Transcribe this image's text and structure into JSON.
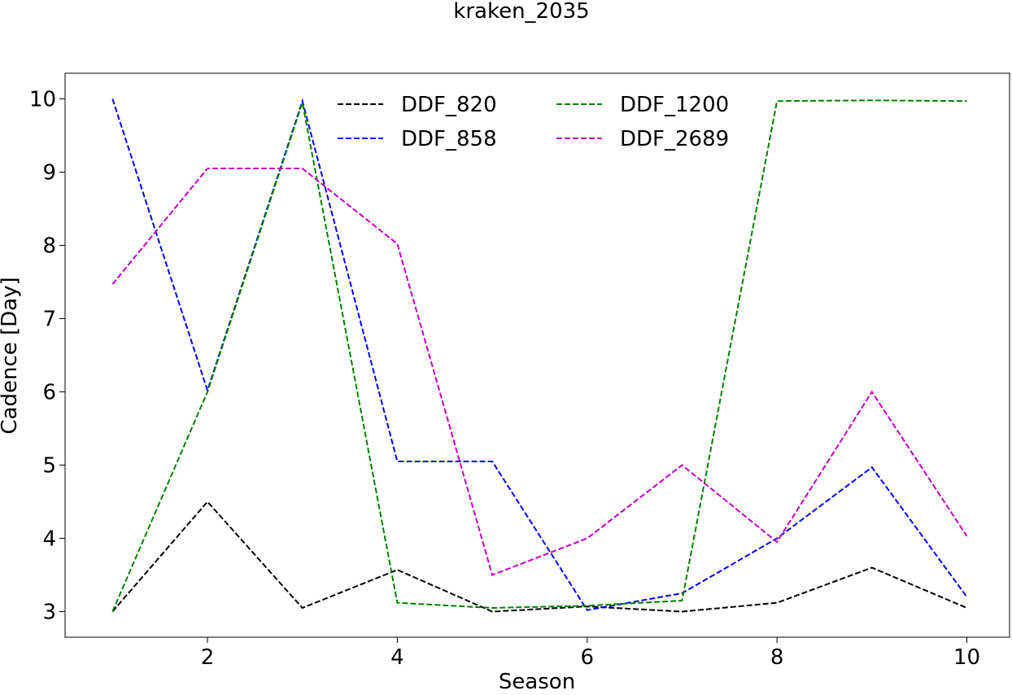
{
  "chart_data": {
    "type": "line",
    "title": "kraken_2035",
    "xlabel": "Season",
    "ylabel": "Cadence [Day]",
    "x": [
      1,
      2,
      3,
      4,
      5,
      6,
      7,
      8,
      9,
      10
    ],
    "xlim": [
      0.5,
      10.45
    ],
    "ylim": [
      2.65,
      10.35
    ],
    "xticks": [
      2,
      4,
      6,
      8,
      10
    ],
    "yticks": [
      3,
      4,
      5,
      6,
      7,
      8,
      9,
      10
    ],
    "grid": false,
    "legend_position": "top-center",
    "legend_columns": 2,
    "line_style": "dashed",
    "series": [
      {
        "name": "DDF_820",
        "color": "#000000",
        "values": [
          3.0,
          4.5,
          3.05,
          3.57,
          3.0,
          3.07,
          3.0,
          3.12,
          3.6,
          3.05
        ]
      },
      {
        "name": "DDF_858",
        "color": "#0000ff",
        "values": [
          10.0,
          6.02,
          9.97,
          5.05,
          5.05,
          3.02,
          3.25,
          4.0,
          4.97,
          3.2
        ]
      },
      {
        "name": "DDF_1200",
        "color": "#008000",
        "values": [
          3.0,
          6.0,
          9.95,
          3.12,
          3.05,
          3.08,
          3.15,
          9.97,
          9.98,
          9.97
        ]
      },
      {
        "name": "DDF_2689",
        "color": "#c000c0",
        "values": [
          7.47,
          9.05,
          9.05,
          8.02,
          3.5,
          4.0,
          5.0,
          3.95,
          6.0,
          4.03
        ]
      }
    ]
  }
}
